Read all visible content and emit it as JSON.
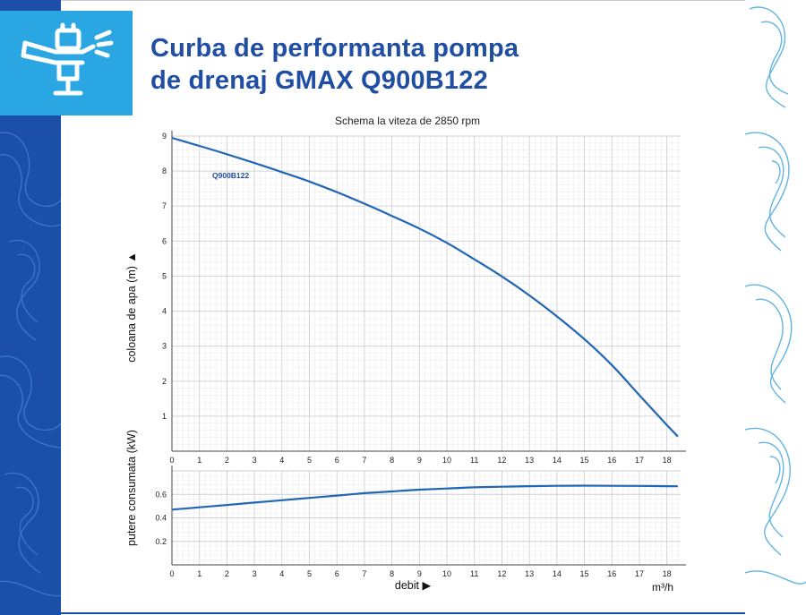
{
  "page": {
    "title_line1": "Curba de performanta pompa",
    "title_line2": "de drenaj GMAX Q900B122",
    "logo_icon": "sprinkler-icon",
    "colors": {
      "brand_blue": "#1b4fa8",
      "logo_bg": "#2aa6e3",
      "title": "#1f4ea3",
      "curve": "#2166b4"
    }
  },
  "chart_data": [
    {
      "type": "line",
      "title": "Schema la viteza de 2850 rpm",
      "xlabel": "",
      "ylabel": "coloana de apa (m) ▲",
      "xticks": [
        0,
        1,
        2,
        3,
        4,
        5,
        6,
        7,
        8,
        9,
        10,
        11,
        12,
        13,
        14,
        15,
        16,
        17,
        18
      ],
      "yticks": [
        1,
        2,
        3,
        4,
        5,
        6,
        7,
        8,
        9
      ],
      "xlim": [
        0,
        18.5
      ],
      "ylim": [
        0,
        9
      ],
      "grid": true,
      "series": [
        {
          "name": "Q900B122",
          "x": [
            0,
            1,
            2,
            3,
            4,
            5,
            6,
            7,
            8,
            9,
            10,
            11,
            12,
            13,
            14,
            15,
            16,
            17,
            18,
            18.4
          ],
          "y": [
            8.95,
            8.72,
            8.48,
            8.23,
            7.97,
            7.7,
            7.4,
            7.07,
            6.72,
            6.36,
            5.95,
            5.48,
            4.99,
            4.45,
            3.85,
            3.2,
            2.46,
            1.6,
            0.75,
            0.42
          ]
        }
      ]
    },
    {
      "type": "line",
      "title": "",
      "xlabel": "debit ▶",
      "xunit": "m³/h",
      "ylabel": "putere consumata (kW)",
      "xticks": [
        0,
        1,
        2,
        3,
        4,
        5,
        6,
        7,
        8,
        9,
        10,
        11,
        12,
        13,
        14,
        15,
        16,
        17,
        18
      ],
      "yticks": [
        0.2,
        0.4,
        0.6
      ],
      "xlim": [
        0,
        18.5
      ],
      "ylim": [
        0,
        0.8
      ],
      "grid": true,
      "series": [
        {
          "name": "",
          "x": [
            0,
            1,
            2,
            3,
            4,
            5,
            6,
            7,
            8,
            9,
            10,
            11,
            12,
            13,
            14,
            15,
            16,
            17,
            18,
            18.4
          ],
          "y": [
            0.47,
            0.49,
            0.51,
            0.53,
            0.55,
            0.57,
            0.59,
            0.61,
            0.625,
            0.64,
            0.65,
            0.66,
            0.665,
            0.67,
            0.673,
            0.674,
            0.673,
            0.672,
            0.67,
            0.669
          ]
        }
      ]
    }
  ]
}
